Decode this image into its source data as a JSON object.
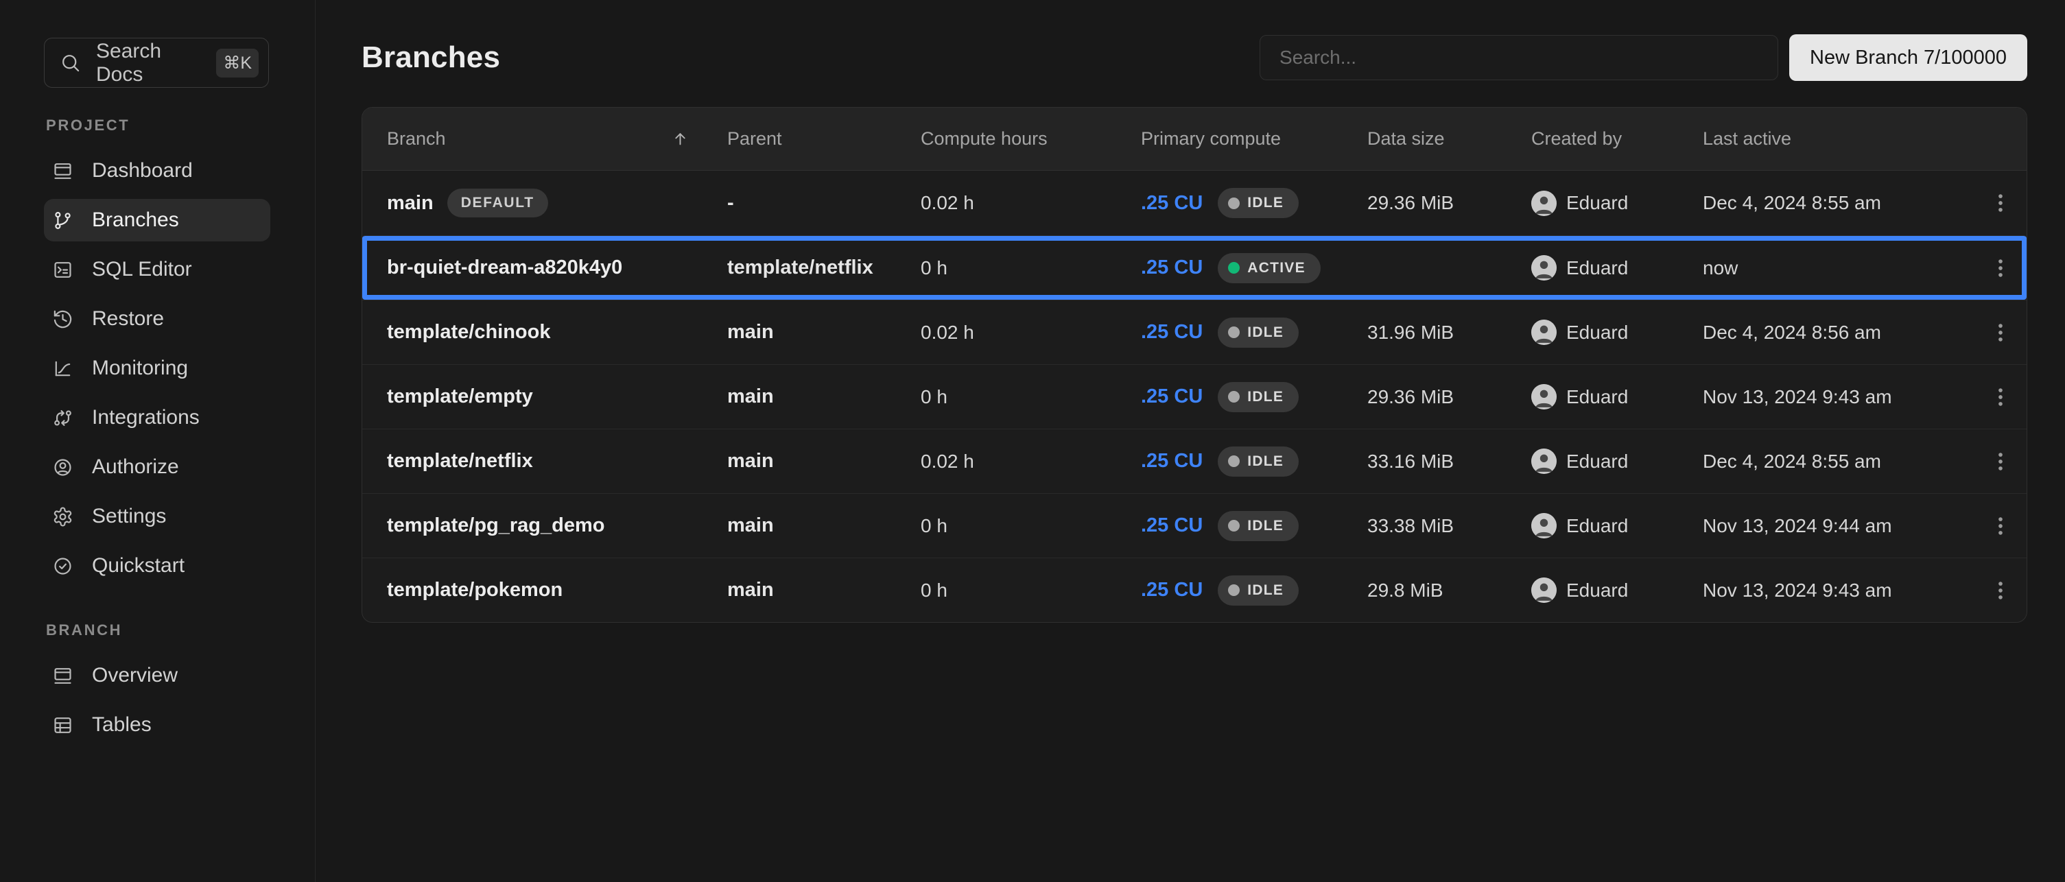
{
  "sidebar": {
    "search": {
      "label": "Search Docs",
      "shortcut": "⌘K",
      "icon": "search-icon"
    },
    "sections": [
      {
        "label": "PROJECT",
        "items": [
          {
            "label": "Dashboard",
            "icon": "dashboard-icon",
            "active": false
          },
          {
            "label": "Branches",
            "icon": "git-branch-icon",
            "active": true
          },
          {
            "label": "SQL Editor",
            "icon": "sql-editor-icon",
            "active": false
          },
          {
            "label": "Restore",
            "icon": "restore-icon",
            "active": false
          },
          {
            "label": "Monitoring",
            "icon": "monitoring-icon",
            "active": false
          },
          {
            "label": "Integrations",
            "icon": "integrations-icon",
            "active": false
          },
          {
            "label": "Authorize",
            "icon": "authorize-icon",
            "active": false
          },
          {
            "label": "Settings",
            "icon": "settings-icon",
            "active": false
          },
          {
            "label": "Quickstart",
            "icon": "quickstart-icon",
            "active": false
          }
        ]
      },
      {
        "label": "BRANCH",
        "items": [
          {
            "label": "Overview",
            "icon": "overview-icon",
            "active": false
          },
          {
            "label": "Tables",
            "icon": "tables-icon",
            "active": false
          }
        ]
      }
    ]
  },
  "header": {
    "title": "Branches",
    "search_placeholder": "Search...",
    "new_branch_label": "New Branch 7/100000"
  },
  "table": {
    "columns": [
      "Branch",
      "Parent",
      "Compute hours",
      "Primary compute",
      "Data size",
      "Created by",
      "Last active"
    ],
    "sorted_column": "Branch",
    "sort_direction": "asc",
    "rows": [
      {
        "branch": "main",
        "badge": "DEFAULT",
        "parent": "-",
        "compute_hours": "0.02 h",
        "primary_compute": ".25 CU",
        "status": "IDLE",
        "data_size": "29.36 MiB",
        "created_by": "Eduard",
        "last_active": "Dec 4, 2024 8:55 am",
        "highlighted": false
      },
      {
        "branch": "br-quiet-dream-a820k4y0",
        "badge": "",
        "parent": "template/netflix",
        "compute_hours": "0 h",
        "primary_compute": ".25 CU",
        "status": "ACTIVE",
        "data_size": "",
        "created_by": "Eduard",
        "last_active": "now",
        "highlighted": true
      },
      {
        "branch": "template/chinook",
        "badge": "",
        "parent": "main",
        "compute_hours": "0.02 h",
        "primary_compute": ".25 CU",
        "status": "IDLE",
        "data_size": "31.96 MiB",
        "created_by": "Eduard",
        "last_active": "Dec 4, 2024 8:56 am",
        "highlighted": false
      },
      {
        "branch": "template/empty",
        "badge": "",
        "parent": "main",
        "compute_hours": "0 h",
        "primary_compute": ".25 CU",
        "status": "IDLE",
        "data_size": "29.36 MiB",
        "created_by": "Eduard",
        "last_active": "Nov 13, 2024 9:43 am",
        "highlighted": false
      },
      {
        "branch": "template/netflix",
        "badge": "",
        "parent": "main",
        "compute_hours": "0.02 h",
        "primary_compute": ".25 CU",
        "status": "IDLE",
        "data_size": "33.16 MiB",
        "created_by": "Eduard",
        "last_active": "Dec 4, 2024 8:55 am",
        "highlighted": false
      },
      {
        "branch": "template/pg_rag_demo",
        "badge": "",
        "parent": "main",
        "compute_hours": "0 h",
        "primary_compute": ".25 CU",
        "status": "IDLE",
        "data_size": "33.38 MiB",
        "created_by": "Eduard",
        "last_active": "Nov 13, 2024 9:44 am",
        "highlighted": false
      },
      {
        "branch": "template/pokemon",
        "badge": "",
        "parent": "main",
        "compute_hours": "0 h",
        "primary_compute": ".25 CU",
        "status": "IDLE",
        "data_size": "29.8 MiB",
        "created_by": "Eduard",
        "last_active": "Nov 13, 2024 9:43 am",
        "highlighted": false
      }
    ]
  },
  "colors": {
    "accent_blue": "#3e83f8",
    "active_green": "#12b876",
    "idle_gray": "#a8a8a8"
  }
}
